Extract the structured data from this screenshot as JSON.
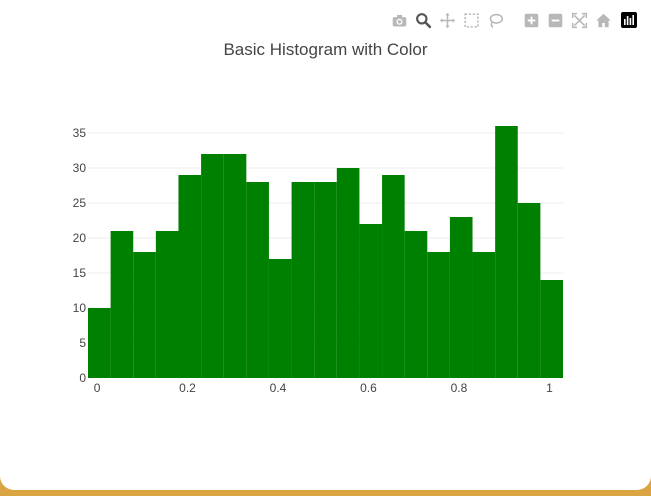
{
  "modebar": {
    "buttons": [
      {
        "name": "camera-icon"
      },
      {
        "name": "zoom-icon",
        "active": true
      },
      {
        "name": "pan-icon"
      },
      {
        "name": "box-select-icon"
      },
      {
        "name": "lasso-select-icon"
      },
      {
        "name": "zoom-in-icon"
      },
      {
        "name": "zoom-out-icon"
      },
      {
        "name": "autoscale-icon"
      },
      {
        "name": "reset-axes-icon"
      }
    ],
    "logo": "plotly-logo-icon",
    "icon_color": "#b8b8b8",
    "active_color": "#555555"
  },
  "chart_data": {
    "type": "bar",
    "title": "Basic Histogram with Color",
    "bar_color": "#008000",
    "bin_start": -0.02,
    "bin_width": 0.05,
    "values": [
      10,
      21,
      18,
      21,
      29,
      32,
      32,
      28,
      17,
      28,
      28,
      30,
      22,
      29,
      21,
      18,
      23,
      18,
      36,
      25,
      14
    ],
    "xlim": [
      -0.02,
      1.03
    ],
    "ylim": [
      0,
      38
    ],
    "xticks": [
      0,
      0.2,
      0.4,
      0.6,
      0.8,
      1
    ],
    "xtick_labels": [
      "0",
      "0.2",
      "0.4",
      "0.6",
      "0.8",
      "1"
    ],
    "yticks": [
      0,
      5,
      10,
      15,
      20,
      25,
      30,
      35
    ],
    "ytick_labels": [
      "0",
      "5",
      "10",
      "15",
      "20",
      "25",
      "30",
      "35"
    ],
    "xlabel": "",
    "ylabel": "",
    "grid": true
  }
}
